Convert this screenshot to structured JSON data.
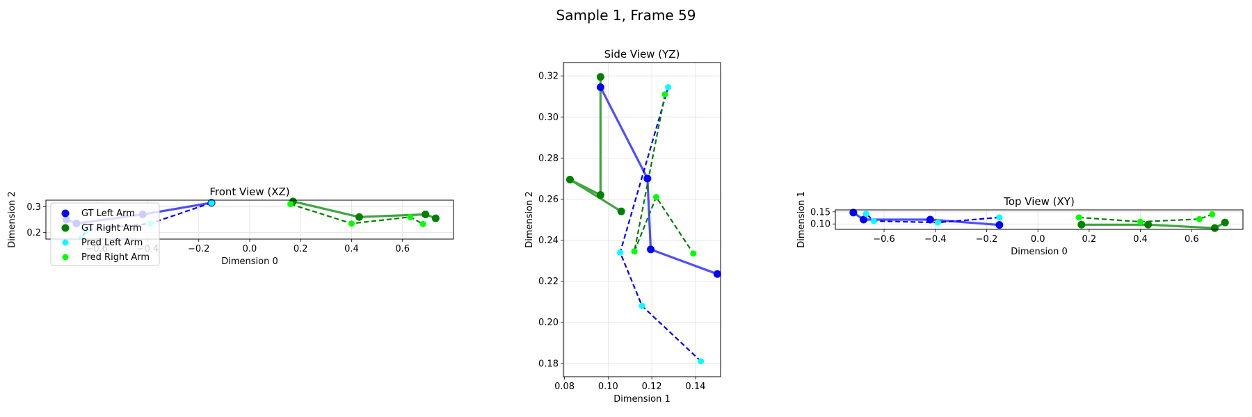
{
  "figure": {
    "title": "Sample 1, Frame 59"
  },
  "colors": {
    "gt_left": "#0000ff",
    "gt_right": "#008000",
    "pred_left": "#00ffff",
    "pred_right": "#00ff00",
    "gt_left_line": "#3b3bff",
    "gt_right_line": "#2e9a2e",
    "pred_left_line": "#0000ff",
    "pred_right_line": "#008000"
  },
  "legend": {
    "placement": "lower-left of front view",
    "items": [
      "GT Left Arm",
      "GT Right Arm",
      "Pred Left Arm",
      "Pred Right Arm"
    ]
  },
  "chart_data": [
    {
      "type": "line",
      "title": "Front View (XZ)",
      "xlabel": "Dimension 0",
      "ylabel": "Dimension 2",
      "xlim": [
        -0.8,
        0.8
      ],
      "ylim": [
        0.175,
        0.325
      ],
      "xticks": [
        -0.6,
        -0.4,
        -0.2,
        0.0,
        0.2,
        0.4,
        0.6
      ],
      "xtick_labels": [
        "−0.6",
        "−0.4",
        "−0.2",
        "0.0",
        "0.2",
        "0.4",
        "0.6"
      ],
      "yticks": [
        0.2,
        0.3
      ],
      "ytick_labels": [
        "0.2",
        "0.3"
      ],
      "grid": true,
      "series": [
        {
          "name": "GT Left Arm",
          "style": "gt_left",
          "points": [
            [
              -0.15,
              0.315
            ],
            [
              -0.42,
              0.27
            ],
            [
              -0.68,
              0.235
            ],
            [
              -0.72,
              0.25
            ]
          ]
        },
        {
          "name": "GT Right Arm",
          "style": "gt_right",
          "points": [
            [
              0.17,
              0.32
            ],
            [
              0.43,
              0.26
            ],
            [
              0.69,
              0.27
            ],
            [
              0.73,
              0.255
            ]
          ]
        },
        {
          "name": "Pred Left Arm",
          "style": "pred_left",
          "points": [
            [
              -0.15,
              0.315
            ],
            [
              -0.39,
              0.235
            ],
            [
              -0.64,
              0.21
            ],
            [
              -0.66,
              0.18
            ]
          ]
        },
        {
          "name": "Pred Right Arm",
          "style": "pred_right",
          "points": [
            [
              0.16,
              0.31
            ],
            [
              0.4,
              0.235
            ],
            [
              0.63,
              0.26
            ],
            [
              0.68,
              0.233
            ]
          ]
        }
      ]
    },
    {
      "type": "line",
      "title": "Side View (YZ)",
      "xlabel": "Dimension 1",
      "ylabel": "Dimension 2",
      "xlim": [
        0.0795,
        0.1515
      ],
      "ylim": [
        0.1735,
        0.3265
      ],
      "xticks": [
        0.08,
        0.1,
        0.12,
        0.14
      ],
      "xtick_labels": [
        "0.08",
        "0.10",
        "0.12",
        "0.14"
      ],
      "yticks": [
        0.18,
        0.2,
        0.22,
        0.24,
        0.26,
        0.28,
        0.3,
        0.32
      ],
      "ytick_labels": [
        "0.18",
        "0.20",
        "0.22",
        "0.24",
        "0.26",
        "0.28",
        "0.30",
        "0.32"
      ],
      "grid": true,
      "series": [
        {
          "name": "GT Left Arm",
          "style": "gt_left",
          "points": [
            [
              0.0965,
              0.3145
            ],
            [
              0.118,
              0.27
            ],
            [
              0.1195,
              0.2355
            ],
            [
              0.15,
              0.2235
            ]
          ]
        },
        {
          "name": "GT Right Arm",
          "style": "gt_right",
          "points": [
            [
              0.0965,
              0.3195
            ],
            [
              0.0965,
              0.262
            ],
            [
              0.0825,
              0.2695
            ],
            [
              0.106,
              0.254
            ]
          ]
        },
        {
          "name": "Pred Left Arm",
          "style": "pred_left",
          "points": [
            [
              0.1275,
              0.3145
            ],
            [
              0.1055,
              0.234
            ],
            [
              0.1155,
              0.208
            ],
            [
              0.1425,
              0.181
            ]
          ]
        },
        {
          "name": "Pred Right Arm",
          "style": "pred_right",
          "points": [
            [
              0.126,
              0.311
            ],
            [
              0.112,
              0.2345
            ],
            [
              0.122,
              0.261
            ],
            [
              0.139,
              0.2335
            ]
          ]
        }
      ]
    },
    {
      "type": "line",
      "title": "Top View (XY)",
      "xlabel": "Dimension 0",
      "ylabel": "Dimension 1",
      "xlim": [
        -0.79,
        0.8
      ],
      "ylim": [
        0.0778,
        0.158
      ],
      "xticks": [
        -0.6,
        -0.4,
        -0.2,
        0.0,
        0.2,
        0.4,
        0.6
      ],
      "xtick_labels": [
        "−0.6",
        "−0.4",
        "−0.2",
        "0.0",
        "0.2",
        "0.4",
        "0.6"
      ],
      "yticks": [
        0.1,
        0.15
      ],
      "ytick_labels": [
        "0.10",
        "0.15"
      ],
      "grid": true,
      "series": [
        {
          "name": "GT Left Arm",
          "style": "gt_left",
          "points": [
            [
              -0.15,
              0.096
            ],
            [
              -0.42,
              0.118
            ],
            [
              -0.68,
              0.118
            ],
            [
              -0.72,
              0.147
            ]
          ]
        },
        {
          "name": "GT Right Arm",
          "style": "gt_right",
          "points": [
            [
              0.17,
              0.097
            ],
            [
              0.43,
              0.097
            ],
            [
              0.69,
              0.083
            ],
            [
              0.73,
              0.106
            ]
          ]
        },
        {
          "name": "Pred Left Arm",
          "style": "pred_left",
          "points": [
            [
              -0.15,
              0.127
            ],
            [
              -0.39,
              0.106
            ],
            [
              -0.64,
              0.112
            ],
            [
              -0.67,
              0.142
            ]
          ]
        },
        {
          "name": "Pred Right Arm",
          "style": "pred_right",
          "points": [
            [
              0.16,
              0.127
            ],
            [
              0.4,
              0.109
            ],
            [
              0.63,
              0.12
            ],
            [
              0.68,
              0.14
            ]
          ]
        }
      ]
    }
  ]
}
